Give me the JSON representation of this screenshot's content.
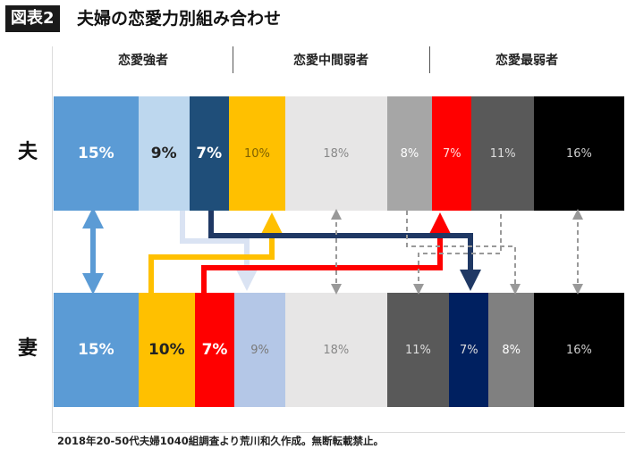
{
  "header": {
    "badge": "図表2",
    "title": "夫婦の恋愛力別組み合わせ"
  },
  "groups": [
    "恋愛強者",
    "恋愛中間弱者",
    "恋愛最弱者"
  ],
  "rows": [
    "夫",
    "妻"
  ],
  "footnote": "2018年20-50代夫婦1040組調査より荒川和久作成。無断転載禁止。",
  "chart_data": {
    "type": "bar",
    "subtype": "stacked-100-horizontal",
    "categories": [
      "夫",
      "妻"
    ],
    "groups": [
      "恋愛強者",
      "恋愛中間弱者",
      "恋愛最弱者"
    ],
    "rows": [
      {
        "name": "夫",
        "segments": [
          {
            "value": 15,
            "label": "15%",
            "color": "#5b9bd5",
            "text_color": "#ffffff",
            "bold": true
          },
          {
            "value": 9,
            "label": "9%",
            "color": "#bdd7ee",
            "text_color": "#222222",
            "bold": true
          },
          {
            "value": 7,
            "label": "7%",
            "color": "#1f4e79",
            "text_color": "#ffffff",
            "bold": true
          },
          {
            "value": 10,
            "label": "10%",
            "color": "#ffc000",
            "text_color": "#7f6000",
            "bold": false
          },
          {
            "value": 18,
            "label": "18%",
            "color": "#e7e6e6",
            "text_color": "#888888",
            "bold": false
          },
          {
            "value": 8,
            "label": "8%",
            "color": "#a6a6a6",
            "text_color": "#ffffff",
            "bold": false
          },
          {
            "value": 7,
            "label": "7%",
            "color": "#ff0000",
            "text_color": "#ffdddd",
            "bold": false
          },
          {
            "value": 11,
            "label": "11%",
            "color": "#595959",
            "text_color": "#dddddd",
            "bold": false
          },
          {
            "value": 16,
            "label": "16%",
            "color": "#000000",
            "text_color": "#cccccc",
            "bold": false
          }
        ]
      },
      {
        "name": "妻",
        "segments": [
          {
            "value": 15,
            "label": "15%",
            "color": "#5b9bd5",
            "text_color": "#ffffff",
            "bold": true
          },
          {
            "value": 10,
            "label": "10%",
            "color": "#ffc000",
            "text_color": "#222222",
            "bold": true
          },
          {
            "value": 7,
            "label": "7%",
            "color": "#ff0000",
            "text_color": "#ffffff",
            "bold": true
          },
          {
            "value": 9,
            "label": "9%",
            "color": "#b4c7e7",
            "text_color": "#7a7a7a",
            "bold": false
          },
          {
            "value": 18,
            "label": "18%",
            "color": "#e7e6e6",
            "text_color": "#888888",
            "bold": false
          },
          {
            "value": 11,
            "label": "11%",
            "color": "#595959",
            "text_color": "#dddddd",
            "bold": false
          },
          {
            "value": 7,
            "label": "7%",
            "color": "#002060",
            "text_color": "#dddddd",
            "bold": false
          },
          {
            "value": 8,
            "label": "8%",
            "color": "#808080",
            "text_color": "#ffffff",
            "bold": false
          },
          {
            "value": 16,
            "label": "16%",
            "color": "#000000",
            "text_color": "#cccccc",
            "bold": false
          }
        ]
      }
    ],
    "links": [
      {
        "from_row": "夫",
        "from_segment": 0,
        "to_row": "妻",
        "to_segment": 0,
        "style": "double-arrow",
        "color": "#5b9bd5"
      },
      {
        "from_row": "夫",
        "from_segment": 1,
        "to_row": "妻",
        "to_segment": 3,
        "style": "arrow",
        "color": "#dae3f3"
      },
      {
        "from_row": "夫",
        "from_segment": 2,
        "to_row": "妻",
        "to_segment": 6,
        "style": "arrow",
        "color": "#1f3864"
      },
      {
        "from_row": "妻",
        "from_segment": 1,
        "to_row": "夫",
        "to_segment": 3,
        "style": "arrow",
        "color": "#ffc000"
      },
      {
        "from_row": "妻",
        "from_segment": 2,
        "to_row": "夫",
        "to_segment": 6,
        "style": "arrow",
        "color": "#ff0000"
      },
      {
        "from_row": "夫",
        "from_segment": 4,
        "to_row": "妻",
        "to_segment": 4,
        "style": "dashed-double",
        "color": "#999999"
      },
      {
        "from_row": "夫",
        "from_segment": 5,
        "to_row": "妻",
        "to_segment": 7,
        "style": "dashed-arrow",
        "color": "#999999"
      },
      {
        "from_row": "夫",
        "from_segment": 7,
        "to_row": "妻",
        "to_segment": 5,
        "style": "dashed-arrow",
        "color": "#999999"
      },
      {
        "from_row": "夫",
        "from_segment": 8,
        "to_row": "妻",
        "to_segment": 8,
        "style": "dashed-double",
        "color": "#999999"
      }
    ]
  }
}
